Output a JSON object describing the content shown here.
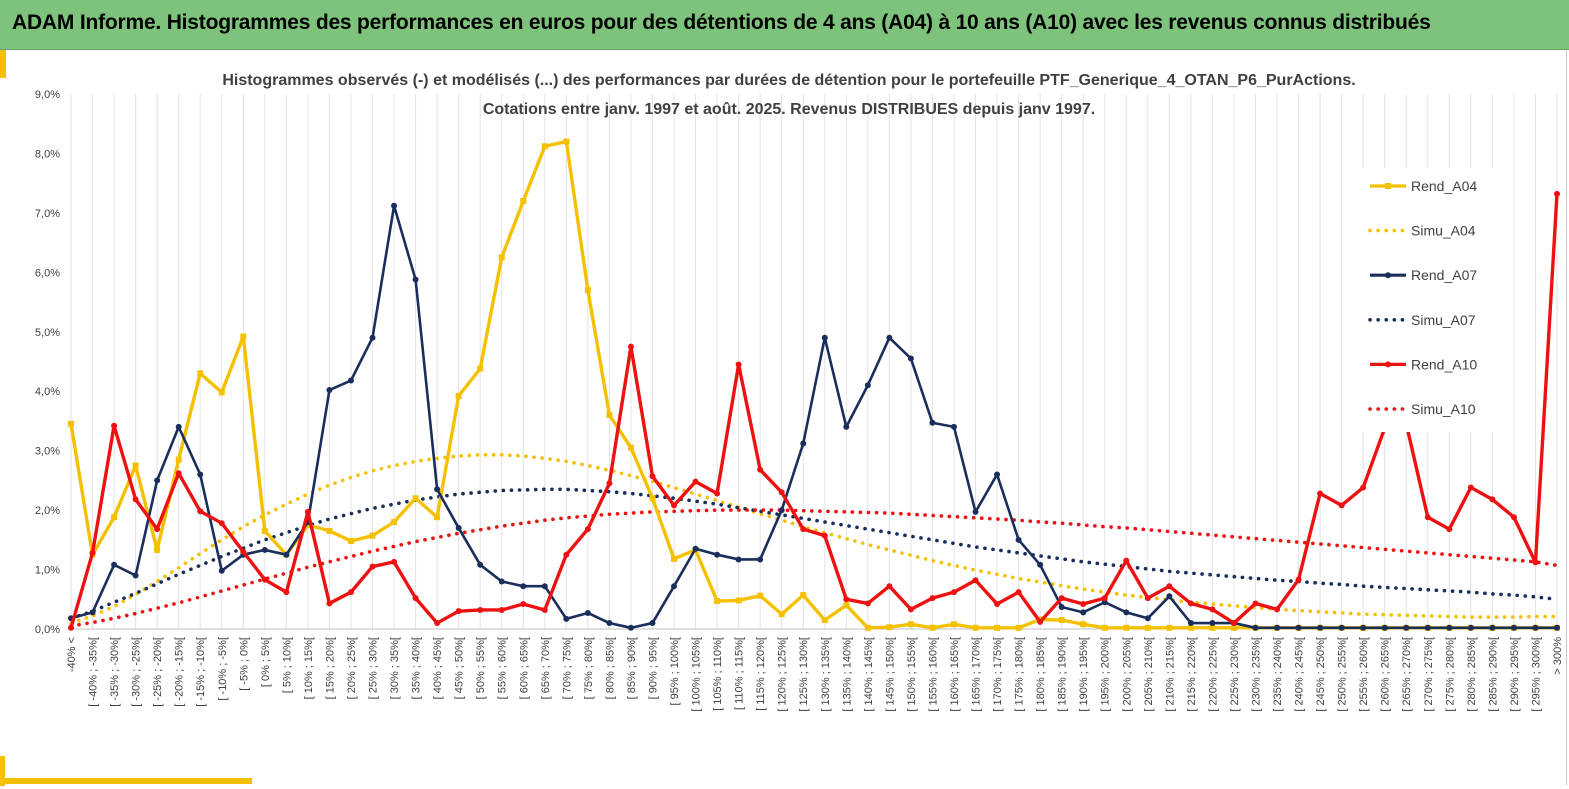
{
  "header": {
    "title": "ADAM Informe. Histogrammes des performances en euros pour des détentions de 4 ans (A04) à 10 ans (A10) avec les revenus connus distribués"
  },
  "colors": {
    "banner": "#7dc37b",
    "accent": "#f5c000",
    "a04": "#f5c000",
    "a07": "#1a2e5c",
    "a10": "#ee1111",
    "grid": "#e2e2e2"
  },
  "chart_data": {
    "type": "line",
    "title": [
      "Histogrammes observés (-) et modélisés (...) des performances par durées de détention pour le portefeuille PTF_Generique_4_OTAN_P6_PurActions.",
      "Cotations entre janv. 1997 et août. 2025. Revenus DISTRIBUES depuis janv 1997."
    ],
    "xlabel": "",
    "ylabel": "",
    "ylim": [
      0,
      9
    ],
    "y_ticks": [
      "0,0%",
      "1,0%",
      "2,0%",
      "3,0%",
      "4,0%",
      "5,0%",
      "6,0%",
      "7,0%",
      "8,0%",
      "9,0%"
    ],
    "grid": "vertical",
    "legend_position": "right",
    "categories": [
      "-40% <",
      "[ -40% ; -35%[",
      "[ -35% ; -30%[",
      "[ -30% ; -25%[",
      "[ -25% ; -20%[",
      "[ -20% ; -15%[",
      "[ -15% ; -10%[",
      "[ -10% ; -5%[",
      "[ -5% ; 0%[",
      "[ 0% ; 5%[",
      "[ 5% ; 10%[",
      "[ 10% ; 15%[",
      "[ 15% ; 20%[",
      "[ 20% ; 25%[",
      "[ 25% ; 30%[",
      "[ 30% ; 35%[",
      "[ 35% ; 40%[",
      "[ 40% ; 45%[",
      "[ 45% ; 50%[",
      "[ 50% ; 55%[",
      "[ 55% ; 60%[",
      "[ 60% ; 65%[",
      "[ 65% ; 70%[",
      "[ 70% ; 75%[",
      "[ 75% ; 80%[",
      "[ 80% ; 85%[",
      "[ 85% ; 90%[",
      "[ 90% ; 95%[",
      "[ 95% ; 100%[",
      "[ 100% ; 105%[",
      "[ 105% ; 110%[",
      "[ 110% ; 115%[",
      "[ 115% ; 120%[",
      "[ 120% ; 125%[",
      "[ 125% ; 130%[",
      "[ 130% ; 135%[",
      "[ 135% ; 140%[",
      "[ 140% ; 145%[",
      "[ 145% ; 150%[",
      "[ 150% ; 155%[",
      "[ 155% ; 160%[",
      "[ 160% ; 165%[",
      "[ 165% ; 170%[",
      "[ 170% ; 175%[",
      "[ 175% ; 180%[",
      "[ 180% ; 185%[",
      "[ 185% ; 190%[",
      "[ 190% ; 195%[",
      "[ 195% ; 200%[",
      "[ 200% ; 205%[",
      "[ 205% ; 210%[",
      "[ 210% ; 215%[",
      "[ 215% ; 220%[",
      "[ 220% ; 225%[",
      "[ 225% ; 230%[",
      "[ 230% ; 235%[",
      "[ 235% ; 240%[",
      "[ 240% ; 245%[",
      "[ 245% ; 250%[",
      "[ 250% ; 255%[",
      "[ 255% ; 260%[",
      "[ 260% ; 265%[",
      "[ 265% ; 270%[",
      "[ 270% ; 275%[",
      "[ 275% ; 280%[",
      "[ 280% ; 285%[",
      "[ 285% ; 290%[",
      "[ 290% ; 295%[",
      "[ 295% ; 300%[",
      "> 300%"
    ],
    "series": [
      {
        "name": "Rend_A04",
        "style": "solid",
        "color": "#f5c000",
        "values": [
          3.45,
          1.25,
          1.88,
          2.75,
          1.33,
          2.85,
          4.3,
          3.98,
          4.92,
          1.65,
          1.25,
          1.75,
          1.65,
          1.48,
          1.57,
          1.8,
          2.2,
          1.88,
          3.92,
          4.38,
          6.25,
          7.2,
          8.12,
          8.2,
          5.7,
          3.6,
          3.05,
          2.2,
          1.18,
          1.33,
          0.47,
          0.48,
          0.56,
          0.25,
          0.57,
          0.15,
          0.4,
          0.02,
          0.03,
          0.08,
          0.02,
          0.08,
          0.02,
          0.02,
          0.02,
          0.16,
          0.15,
          0.08,
          0.02,
          0.02,
          0.02,
          0.02,
          0.02,
          0.02,
          0.02,
          0.02,
          0.02,
          0.02,
          0.02,
          0.02,
          0.02,
          0.02,
          0.02,
          0.02,
          0.02,
          0.02,
          0.02,
          0.02,
          0.02,
          0.02
        ]
      },
      {
        "name": "Simu_A04",
        "style": "dotted",
        "color": "#f5c000",
        "values": [
          0.1,
          0.22,
          0.38,
          0.58,
          0.8,
          1.03,
          1.27,
          1.5,
          1.72,
          1.92,
          2.1,
          2.27,
          2.42,
          2.55,
          2.66,
          2.75,
          2.82,
          2.87,
          2.91,
          2.93,
          2.93,
          2.91,
          2.87,
          2.82,
          2.75,
          2.67,
          2.58,
          2.48,
          2.38,
          2.27,
          2.16,
          2.05,
          1.94,
          1.83,
          1.72,
          1.62,
          1.52,
          1.42,
          1.33,
          1.24,
          1.15,
          1.07,
          0.99,
          0.92,
          0.85,
          0.79,
          0.73,
          0.67,
          0.62,
          0.57,
          0.53,
          0.49,
          0.45,
          0.42,
          0.39,
          0.36,
          0.33,
          0.31,
          0.29,
          0.27,
          0.25,
          0.24,
          0.23,
          0.22,
          0.21,
          0.2,
          0.2,
          0.2,
          0.21,
          0.21
        ]
      },
      {
        "name": "Rend_A07",
        "style": "solid",
        "color": "#1a2e5c",
        "values": [
          0.18,
          0.28,
          1.08,
          0.9,
          2.5,
          3.4,
          2.6,
          0.98,
          1.25,
          1.33,
          1.25,
          1.8,
          4.02,
          4.18,
          4.9,
          7.12,
          5.88,
          2.35,
          1.7,
          1.08,
          0.8,
          0.72,
          0.72,
          0.17,
          0.27,
          0.1,
          0.02,
          0.1,
          0.72,
          1.35,
          1.25,
          1.17,
          1.17,
          2.0,
          3.12,
          4.9,
          3.4,
          4.1,
          4.9,
          4.55,
          3.47,
          3.4,
          1.97,
          2.6,
          1.5,
          1.08,
          0.37,
          0.28,
          0.45,
          0.28,
          0.18,
          0.55,
          0.1,
          0.1,
          0.1,
          0.02,
          0.02,
          0.02,
          0.02,
          0.02,
          0.02,
          0.02,
          0.02,
          0.02,
          0.02,
          0.02,
          0.02,
          0.02,
          0.02,
          0.02
        ]
      },
      {
        "name": "Simu_A07",
        "style": "dotted",
        "color": "#1a2e5c",
        "values": [
          0.18,
          0.3,
          0.45,
          0.6,
          0.76,
          0.92,
          1.07,
          1.22,
          1.36,
          1.5,
          1.62,
          1.74,
          1.85,
          1.94,
          2.03,
          2.1,
          2.17,
          2.22,
          2.27,
          2.3,
          2.33,
          2.34,
          2.35,
          2.35,
          2.33,
          2.31,
          2.28,
          2.24,
          2.2,
          2.15,
          2.1,
          2.04,
          1.98,
          1.92,
          1.86,
          1.8,
          1.74,
          1.68,
          1.62,
          1.56,
          1.5,
          1.44,
          1.38,
          1.33,
          1.28,
          1.23,
          1.18,
          1.13,
          1.09,
          1.05,
          1.01,
          0.97,
          0.94,
          0.91,
          0.88,
          0.85,
          0.82,
          0.8,
          0.77,
          0.75,
          0.72,
          0.7,
          0.68,
          0.66,
          0.64,
          0.62,
          0.59,
          0.57,
          0.54,
          0.5
        ]
      },
      {
        "name": "Rend_A10",
        "style": "solid",
        "color": "#ee1111",
        "values": [
          0.02,
          1.28,
          3.42,
          2.18,
          1.68,
          2.62,
          1.98,
          1.78,
          1.3,
          0.83,
          0.62,
          1.97,
          0.43,
          0.62,
          1.05,
          1.13,
          0.52,
          0.1,
          0.3,
          0.32,
          0.32,
          0.42,
          0.32,
          1.25,
          1.68,
          2.45,
          4.75,
          2.57,
          2.08,
          2.48,
          2.28,
          4.45,
          2.68,
          2.3,
          1.68,
          1.57,
          0.5,
          0.43,
          0.72,
          0.33,
          0.52,
          0.62,
          0.82,
          0.42,
          0.62,
          0.12,
          0.52,
          0.42,
          0.52,
          1.15,
          0.52,
          0.72,
          0.43,
          0.33,
          0.1,
          0.43,
          0.33,
          0.83,
          2.28,
          2.08,
          2.38,
          3.38,
          3.45,
          1.88,
          1.68,
          2.38,
          2.18,
          1.88,
          1.12,
          7.32
        ]
      },
      {
        "name": "Simu_A10",
        "style": "dotted",
        "color": "#ee1111",
        "values": [
          0.05,
          0.11,
          0.18,
          0.26,
          0.35,
          0.44,
          0.54,
          0.64,
          0.74,
          0.84,
          0.94,
          1.04,
          1.13,
          1.22,
          1.31,
          1.39,
          1.47,
          1.54,
          1.61,
          1.67,
          1.73,
          1.78,
          1.83,
          1.87,
          1.9,
          1.93,
          1.95,
          1.97,
          1.98,
          1.99,
          2.0,
          2.0,
          2.0,
          2.0,
          1.99,
          1.98,
          1.97,
          1.96,
          1.95,
          1.93,
          1.91,
          1.89,
          1.87,
          1.85,
          1.83,
          1.8,
          1.78,
          1.75,
          1.72,
          1.7,
          1.67,
          1.64,
          1.61,
          1.58,
          1.55,
          1.52,
          1.49,
          1.46,
          1.43,
          1.4,
          1.37,
          1.34,
          1.31,
          1.28,
          1.25,
          1.22,
          1.19,
          1.16,
          1.13,
          1.07
        ]
      }
    ]
  }
}
